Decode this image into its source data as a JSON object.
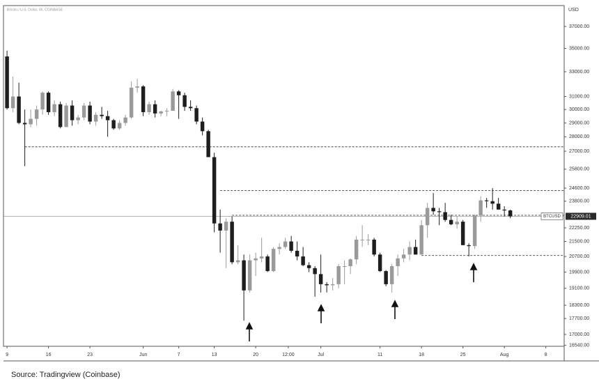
{
  "chart_data": {
    "type": "candlestick",
    "title": "Bitcoin / U.S. Dollar, 4h, COINBASE",
    "y_unit": "USD",
    "source": "Source: Tradingview (Coinbase)",
    "log_y": true,
    "up_color": "#9a9a9a",
    "down_color": "#1e1e1e",
    "ylim": [
      16500,
      39000
    ],
    "yticks": [
      {
        "value": 37000,
        "label": "37000.00"
      },
      {
        "value": 35000,
        "label": "35000.00"
      },
      {
        "value": 33000,
        "label": "33000.00"
      },
      {
        "value": 31000,
        "label": "31000.00"
      },
      {
        "value": 30000,
        "label": "30000.00"
      },
      {
        "value": 29000,
        "label": "29000.00"
      },
      {
        "value": 28000,
        "label": "28000.00"
      },
      {
        "value": 27000,
        "label": "27000.00"
      },
      {
        "value": 25800,
        "label": "25800.00"
      },
      {
        "value": 24600,
        "label": "24600.00"
      },
      {
        "value": 23800,
        "label": "23800.00"
      },
      {
        "value": 22250,
        "label": "22250.00"
      },
      {
        "value": 21500,
        "label": "21500.00"
      },
      {
        "value": 20700,
        "label": "20700.00"
      },
      {
        "value": 19900,
        "label": "19900.00"
      },
      {
        "value": 19100,
        "label": "19100.00"
      },
      {
        "value": 18300,
        "label": "18300.00"
      },
      {
        "value": 17700,
        "label": "17700.00"
      },
      {
        "value": 17000,
        "label": "17000.00"
      },
      {
        "value": 16540,
        "label": "16540.00"
      }
    ],
    "xlim": [
      -0.6,
      94.1
    ],
    "xticks": [
      {
        "value": 0,
        "label": "9"
      },
      {
        "value": 7,
        "label": "16"
      },
      {
        "value": 14,
        "label": "23"
      },
      {
        "value": 23,
        "label": "Jun"
      },
      {
        "value": 29,
        "label": "7"
      },
      {
        "value": 35,
        "label": "13"
      },
      {
        "value": 42,
        "label": "20"
      },
      {
        "value": 47.5,
        "label": "12:00"
      },
      {
        "value": 53,
        "label": "Jul"
      },
      {
        "value": 63,
        "label": "11"
      },
      {
        "value": 70,
        "label": "18"
      },
      {
        "value": 77,
        "label": "25"
      },
      {
        "value": 84,
        "label": "Aug"
      },
      {
        "value": 91,
        "label": "8"
      }
    ],
    "candles": [
      [
        34300,
        34800,
        30000,
        30100
      ],
      [
        30100,
        32600,
        29800,
        31000
      ],
      [
        31000,
        32100,
        28900,
        29000
      ],
      [
        29000,
        30000,
        26000,
        28900
      ],
      [
        28900,
        30000,
        28700,
        29300
      ],
      [
        29300,
        30300,
        28800,
        30000
      ],
      [
        30000,
        31400,
        29600,
        31300
      ],
      [
        31300,
        31400,
        29600,
        29800
      ],
      [
        29800,
        30700,
        29500,
        30400
      ],
      [
        30400,
        30600,
        28600,
        28700
      ],
      [
        28700,
        30500,
        28700,
        30300
      ],
      [
        30300,
        30700,
        28800,
        29200
      ],
      [
        29200,
        29600,
        28900,
        29400
      ],
      [
        29400,
        30500,
        29200,
        30300
      ],
      [
        30300,
        30600,
        28900,
        29100
      ],
      [
        29100,
        29800,
        28800,
        29600
      ],
      [
        29600,
        30200,
        29300,
        29500
      ],
      [
        29500,
        29900,
        28000,
        29200
      ],
      [
        29200,
        29300,
        28500,
        28600
      ],
      [
        28600,
        29200,
        28500,
        29000
      ],
      [
        29000,
        29600,
        28800,
        29400
      ],
      [
        29400,
        32200,
        29300,
        31700
      ],
      [
        31700,
        32400,
        31300,
        31800
      ],
      [
        31800,
        31900,
        29500,
        29800
      ],
      [
        29800,
        30600,
        29600,
        30400
      ],
      [
        30400,
        30700,
        29400,
        29700
      ],
      [
        29700,
        29900,
        29500,
        29850
      ],
      [
        29850,
        30100,
        29500,
        29900
      ],
      [
        29900,
        31600,
        29900,
        31400
      ],
      [
        31400,
        31500,
        29300,
        31100
      ],
      [
        31100,
        31300,
        29900,
        30200
      ],
      [
        30200,
        30700,
        29900,
        30100
      ],
      [
        30100,
        30300,
        28900,
        29100
      ],
      [
        29100,
        29400,
        28100,
        28400
      ],
      [
        28400,
        28500,
        26600,
        26600
      ],
      [
        26600,
        26900,
        22000,
        22500
      ],
      [
        22500,
        23300,
        20900,
        22100
      ],
      [
        22100,
        22800,
        20100,
        22600
      ],
      [
        22600,
        22900,
        20300,
        20400
      ],
      [
        20400,
        21300,
        20300,
        20500
      ],
      [
        20500,
        20800,
        17600,
        19000
      ],
      [
        19000,
        20800,
        18900,
        20500
      ],
      [
        20500,
        20900,
        19700,
        20600
      ],
      [
        20600,
        21700,
        20400,
        20700
      ],
      [
        20700,
        20800,
        19900,
        19950
      ],
      [
        19950,
        21200,
        19900,
        21100
      ],
      [
        21100,
        21400,
        20800,
        21200
      ],
      [
        21200,
        21700,
        21100,
        21500
      ],
      [
        21500,
        21800,
        20900,
        21000
      ],
      [
        21000,
        21500,
        20500,
        20700
      ],
      [
        20700,
        21200,
        20200,
        20250
      ],
      [
        20250,
        20400,
        19900,
        20100
      ],
      [
        20100,
        20200,
        18700,
        19800
      ],
      [
        19800,
        20800,
        18900,
        19300
      ],
      [
        19300,
        19400,
        18900,
        19250
      ],
      [
        19250,
        19600,
        19000,
        19300
      ],
      [
        19300,
        20300,
        19100,
        20200
      ],
      [
        20200,
        20500,
        19300,
        20200
      ],
      [
        20200,
        20600,
        19800,
        20550
      ],
      [
        20550,
        21800,
        20300,
        21600
      ],
      [
        21600,
        22400,
        21200,
        21600
      ],
      [
        21600,
        21900,
        21300,
        21600
      ],
      [
        21600,
        21700,
        20700,
        20800
      ],
      [
        20800,
        20900,
        19900,
        19950
      ],
      [
        19950,
        20000,
        19200,
        19300
      ],
      [
        19300,
        20300,
        18900,
        20200
      ],
      [
        20200,
        20800,
        19700,
        20600
      ],
      [
        20600,
        21100,
        20400,
        20800
      ],
      [
        20800,
        21500,
        20500,
        21200
      ],
      [
        21200,
        21600,
        20800,
        20800
      ],
      [
        20800,
        22700,
        20800,
        22400
      ],
      [
        22400,
        23700,
        21700,
        23400
      ],
      [
        23400,
        24300,
        23000,
        23200
      ],
      [
        23200,
        23400,
        22400,
        23150
      ],
      [
        23150,
        23700,
        22600,
        22700
      ],
      [
        22700,
        23000,
        22400,
        22450
      ],
      [
        22450,
        22900,
        22200,
        22600
      ],
      [
        22600,
        22700,
        21300,
        21300
      ],
      [
        21300,
        21400,
        20700,
        21250
      ],
      [
        21250,
        23000,
        21100,
        22950
      ],
      [
        22950,
        24100,
        22600,
        23850
      ],
      [
        23850,
        24000,
        23400,
        23800
      ],
      [
        23800,
        24600,
        23300,
        23650
      ],
      [
        23650,
        24000,
        23400,
        23300
      ],
      [
        23300,
        23500,
        22900,
        23250
      ],
      [
        23250,
        23300,
        22800,
        22909.01
      ]
    ],
    "levels": [
      {
        "value": 27300,
        "start": 3
      },
      {
        "value": 24450,
        "start": 36
      },
      {
        "value": 22970,
        "start": 38
      },
      {
        "value": 20750,
        "start": 70
      }
    ],
    "price_tag": {
      "name": "BTCUSD",
      "value": 22909.01
    }
  }
}
